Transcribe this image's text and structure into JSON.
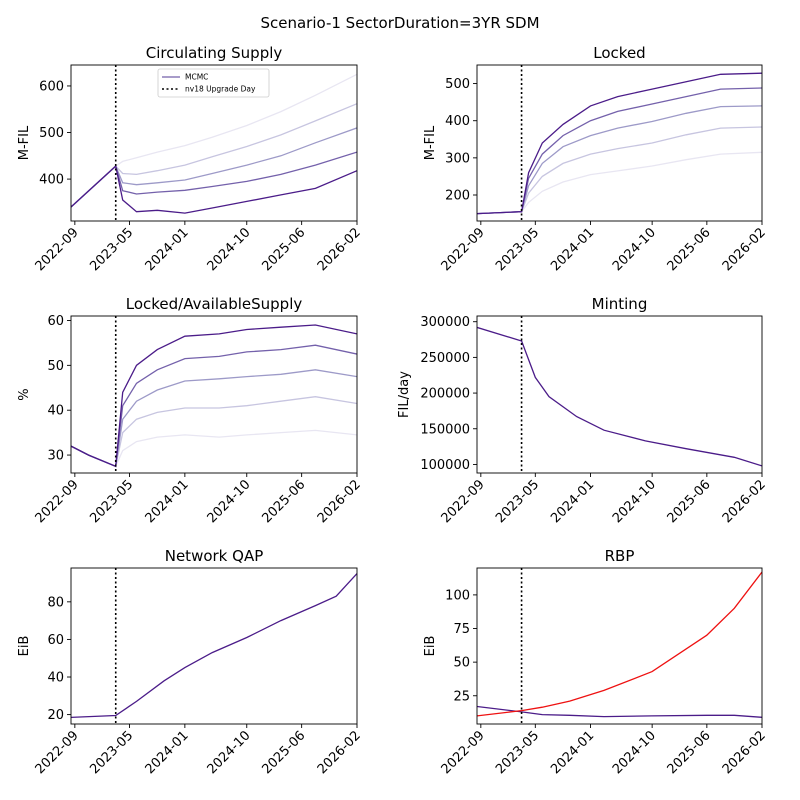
{
  "figure": {
    "title": "Scenario-1 SectorDuration=3YR SDM"
  },
  "x_tick_labels": [
    "2022-09",
    "2023-05",
    "2024-01",
    "2024-10",
    "2025-06",
    "2026-02"
  ],
  "x_tick_dates": [
    "2022-09-01",
    "2023-05-01",
    "2024-01-01",
    "2024-10-01",
    "2025-06-01",
    "2026-02-01"
  ],
  "upgrade_date": "2023-03-01",
  "colors": {
    "shades": [
      "#e8e6f2",
      "#c7c5e0",
      "#9d9ac8",
      "#7461ab",
      "#4b1c89"
    ],
    "red": "#ee1111"
  },
  "chart_data": [
    {
      "id": "circ",
      "type": "line",
      "title": "Circulating Supply",
      "ylabel": "M-FIL",
      "xlim": [
        "2022-08-15",
        "2026-02-01"
      ],
      "ylim": [
        310,
        645
      ],
      "yticks": [
        400,
        500,
        600
      ],
      "legend": {
        "placement": "top-center",
        "entries": [
          "MCMC",
          "nv18 Upgrade Day"
        ]
      },
      "x": [
        "2022-08-15",
        "2023-03-01",
        "2023-04-01",
        "2023-06-01",
        "2023-09-01",
        "2024-01-01",
        "2024-05-01",
        "2024-10-01",
        "2025-03-01",
        "2025-08-01",
        "2026-02-01"
      ],
      "series": [
        {
          "shade": 0,
          "values": [
            340,
            428,
            438,
            446,
            458,
            472,
            490,
            515,
            545,
            580,
            625
          ]
        },
        {
          "shade": 1,
          "values": [
            340,
            428,
            412,
            410,
            418,
            430,
            448,
            470,
            495,
            525,
            562
          ]
        },
        {
          "shade": 2,
          "values": [
            340,
            428,
            392,
            388,
            392,
            398,
            412,
            430,
            450,
            478,
            510
          ]
        },
        {
          "shade": 3,
          "values": [
            340,
            428,
            375,
            368,
            372,
            376,
            384,
            395,
            410,
            430,
            458
          ]
        },
        {
          "shade": 4,
          "values": [
            340,
            428,
            355,
            330,
            333,
            327,
            338,
            352,
            366,
            380,
            418
          ]
        }
      ]
    },
    {
      "id": "locked",
      "type": "line",
      "title": "Locked",
      "ylabel": "M-FIL",
      "xlim": [
        "2022-08-15",
        "2026-02-01"
      ],
      "ylim": [
        130,
        550
      ],
      "yticks": [
        200,
        300,
        400,
        500
      ],
      "x": [
        "2022-08-15",
        "2023-03-01",
        "2023-04-01",
        "2023-06-01",
        "2023-09-01",
        "2024-01-01",
        "2024-05-01",
        "2024-10-01",
        "2025-03-01",
        "2025-08-01",
        "2026-02-01"
      ],
      "series": [
        {
          "shade": 0,
          "values": [
            150,
            155,
            180,
            210,
            235,
            255,
            265,
            278,
            295,
            310,
            315
          ]
        },
        {
          "shade": 1,
          "values": [
            150,
            155,
            205,
            250,
            285,
            310,
            325,
            340,
            362,
            380,
            383
          ]
        },
        {
          "shade": 2,
          "values": [
            150,
            155,
            225,
            285,
            330,
            360,
            380,
            398,
            420,
            438,
            440
          ]
        },
        {
          "shade": 3,
          "values": [
            150,
            155,
            245,
            310,
            360,
            400,
            425,
            445,
            465,
            485,
            488
          ]
        },
        {
          "shade": 4,
          "values": [
            150,
            155,
            260,
            340,
            390,
            440,
            465,
            485,
            505,
            525,
            528
          ]
        }
      ]
    },
    {
      "id": "lockedavail",
      "type": "line",
      "title": "Locked/AvailableSupply",
      "ylabel": "%",
      "xlim": [
        "2022-08-15",
        "2026-02-01"
      ],
      "ylim": [
        26,
        61
      ],
      "yticks": [
        30,
        40,
        50,
        60
      ],
      "x": [
        "2022-08-15",
        "2022-11-01",
        "2023-03-01",
        "2023-04-01",
        "2023-06-01",
        "2023-09-01",
        "2024-01-01",
        "2024-06-01",
        "2024-10-01",
        "2025-03-01",
        "2025-08-01",
        "2026-02-01"
      ],
      "series": [
        {
          "shade": 0,
          "values": [
            32,
            30,
            27.5,
            31,
            33,
            34,
            34.5,
            34,
            34.5,
            35,
            35.5,
            34.5
          ]
        },
        {
          "shade": 1,
          "values": [
            32,
            30,
            27.5,
            35,
            38,
            39.5,
            40.5,
            40.5,
            41,
            42,
            43,
            41.5
          ]
        },
        {
          "shade": 2,
          "values": [
            32,
            30,
            27.5,
            38,
            42,
            44.5,
            46.5,
            47,
            47.5,
            48,
            49,
            47.5
          ]
        },
        {
          "shade": 3,
          "values": [
            32,
            30,
            27.5,
            41,
            46,
            49,
            51.5,
            52,
            53,
            53.5,
            54.5,
            52.5
          ]
        },
        {
          "shade": 4,
          "values": [
            32,
            30,
            27.5,
            44,
            50,
            53.5,
            56.5,
            57,
            58,
            58.5,
            59,
            57
          ]
        }
      ]
    },
    {
      "id": "minting",
      "type": "line",
      "title": "Minting",
      "ylabel": "FIL/day",
      "xlim": [
        "2022-08-15",
        "2026-02-01"
      ],
      "ylim": [
        88000,
        308000
      ],
      "yticks": [
        100000,
        150000,
        200000,
        250000,
        300000
      ],
      "x": [
        "2022-08-15",
        "2023-03-01",
        "2023-05-01",
        "2023-07-01",
        "2023-11-01",
        "2024-03-01",
        "2024-09-01",
        "2025-03-01",
        "2025-10-01",
        "2026-02-01"
      ],
      "series": [
        {
          "shade": 4,
          "values": [
            292000,
            273000,
            222000,
            195000,
            167000,
            148000,
            133000,
            122000,
            110000,
            98000
          ]
        }
      ]
    },
    {
      "id": "qap",
      "type": "line",
      "title": "Network QAP",
      "ylabel": "EiB",
      "xlim": [
        "2022-08-15",
        "2026-02-01"
      ],
      "ylim": [
        15,
        98
      ],
      "yticks": [
        20,
        40,
        60,
        80
      ],
      "x": [
        "2022-08-15",
        "2023-03-01",
        "2023-06-01",
        "2023-10-01",
        "2024-01-01",
        "2024-05-01",
        "2024-10-01",
        "2025-03-01",
        "2025-08-01",
        "2025-11-01",
        "2026-02-01"
      ],
      "series": [
        {
          "shade": 4,
          "values": [
            18.5,
            19.5,
            27,
            38,
            45,
            53,
            61,
            70,
            78,
            83,
            95
          ]
        }
      ]
    },
    {
      "id": "rbp",
      "type": "line",
      "title": "RBP",
      "ylabel": "EiB",
      "xlim": [
        "2022-08-15",
        "2026-02-01"
      ],
      "ylim": [
        4,
        120
      ],
      "yticks": [
        25,
        50,
        75,
        100
      ],
      "x": [
        "2022-08-15",
        "2023-03-01",
        "2023-06-01",
        "2023-10-01",
        "2024-03-01",
        "2024-10-01",
        "2025-06-01",
        "2025-10-01",
        "2026-02-01"
      ],
      "series": [
        {
          "shade": 4,
          "values": [
            17,
            13,
            11,
            10.5,
            9.5,
            10,
            10.5,
            10.5,
            9
          ]
        },
        {
          "color": "red",
          "values": [
            10,
            14,
            16.5,
            21,
            29,
            43,
            70,
            90,
            117
          ]
        }
      ]
    }
  ]
}
